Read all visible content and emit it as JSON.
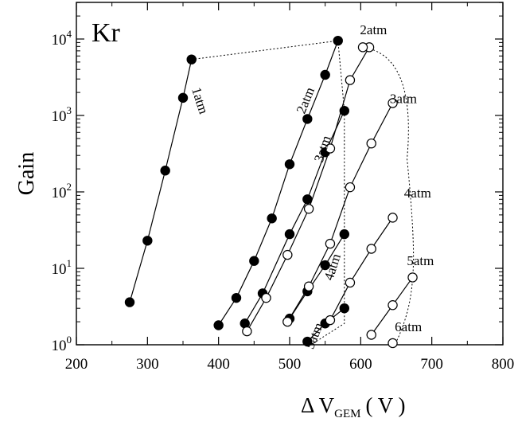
{
  "chart_data": {
    "type": "scatter",
    "title": "Kr",
    "xlabel": "Δ V",
    "xlabel_sub": "GEM",
    "xlabel_unit": "( V )",
    "ylabel": "Gain",
    "xlim": [
      200,
      800
    ],
    "ylim": [
      1,
      50000
    ],
    "yscale": "log",
    "x_ticks": [
      200,
      300,
      400,
      500,
      600,
      700,
      800
    ],
    "y_ticks": [
      {
        "value": 1,
        "base": "10",
        "exp": "0"
      },
      {
        "value": 10,
        "base": "10",
        "exp": "1"
      },
      {
        "value": 100,
        "base": "10",
        "exp": "2"
      },
      {
        "value": 1000,
        "base": "10",
        "exp": "3"
      },
      {
        "value": 10000,
        "base": "10",
        "exp": "4"
      }
    ],
    "series": [
      {
        "label": "1atm",
        "marker": "filled",
        "x": [
          275,
          300,
          325,
          350,
          362
        ],
        "y": [
          3.6,
          23,
          190,
          1700,
          5400
        ]
      },
      {
        "label": "2atm",
        "marker": "filled",
        "x": [
          400,
          425,
          450,
          475,
          500,
          525,
          550,
          568
        ],
        "y": [
          1.8,
          4.1,
          12.5,
          45,
          230,
          900,
          3400,
          9500
        ]
      },
      {
        "label": "3atm",
        "marker": "filled",
        "x": [
          437,
          462,
          500,
          525,
          550,
          577
        ],
        "y": [
          1.9,
          4.7,
          28,
          80,
          330,
          1150
        ]
      },
      {
        "label": "4atm",
        "marker": "filled",
        "x": [
          500,
          525,
          550,
          577
        ],
        "y": [
          2.2,
          5.0,
          11,
          28
        ]
      },
      {
        "label": "5atm",
        "marker": "filled",
        "x": [
          525,
          550,
          577
        ],
        "y": [
          1.1,
          1.9,
          3.0
        ]
      },
      {
        "label": "2atm",
        "marker": "open",
        "x": [
          440,
          467,
          497,
          527,
          557,
          585,
          612,
          603
        ],
        "y": [
          1.5,
          4.1,
          15,
          60,
          370,
          2900,
          7800,
          7800
        ]
      },
      {
        "label": "3atm",
        "marker": "open",
        "x": [
          497,
          527,
          557,
          585,
          615,
          645
        ],
        "y": [
          2.0,
          5.8,
          21,
          115,
          430,
          1450
        ]
      },
      {
        "label": "4atm",
        "marker": "open",
        "x": [
          557,
          585,
          615,
          645
        ],
        "y": [
          2.1,
          6.5,
          18,
          46
        ]
      },
      {
        "label": "5atm",
        "marker": "open",
        "x": [
          615,
          645,
          673
        ],
        "y": [
          1.35,
          3.3,
          7.6
        ]
      },
      {
        "label": "6atm",
        "marker": "open",
        "x": [
          645
        ],
        "y": [
          1.05
        ]
      }
    ],
    "envelope_filled": {
      "x": [
        362,
        568,
        577,
        577,
        577,
        577,
        530
      ],
      "y": [
        5400,
        9500,
        1150,
        28,
        3.0,
        1.9,
        1.0
      ]
    },
    "envelope_open": {
      "x": [
        603,
        645,
        673,
        648
      ],
      "y": [
        7800,
        1450,
        7.6,
        1.0
      ]
    },
    "labels": [
      {
        "text": "1atm",
        "x": 368,
        "y": 1500,
        "rotate": 72
      },
      {
        "text": "2atm",
        "x": 528,
        "y": 1500,
        "rotate": -68
      },
      {
        "text": "3atm",
        "x": 552,
        "y": 350,
        "rotate": -72
      },
      {
        "text": "4atm",
        "x": 566,
        "y": 10,
        "rotate": -72
      },
      {
        "text": "5atm",
        "x": 540,
        "y": 1.25,
        "rotate": -68
      },
      {
        "text": "2atm",
        "x": 618,
        "y": 11500,
        "rotate": 0
      },
      {
        "text": "3atm",
        "x": 660,
        "y": 1450,
        "rotate": 0
      },
      {
        "text": "4atm",
        "x": 680,
        "y": 85,
        "rotate": 0
      },
      {
        "text": "5atm",
        "x": 684,
        "y": 11,
        "rotate": 0
      },
      {
        "text": "6atm",
        "x": 667,
        "y": 1.5,
        "rotate": 0
      }
    ]
  }
}
